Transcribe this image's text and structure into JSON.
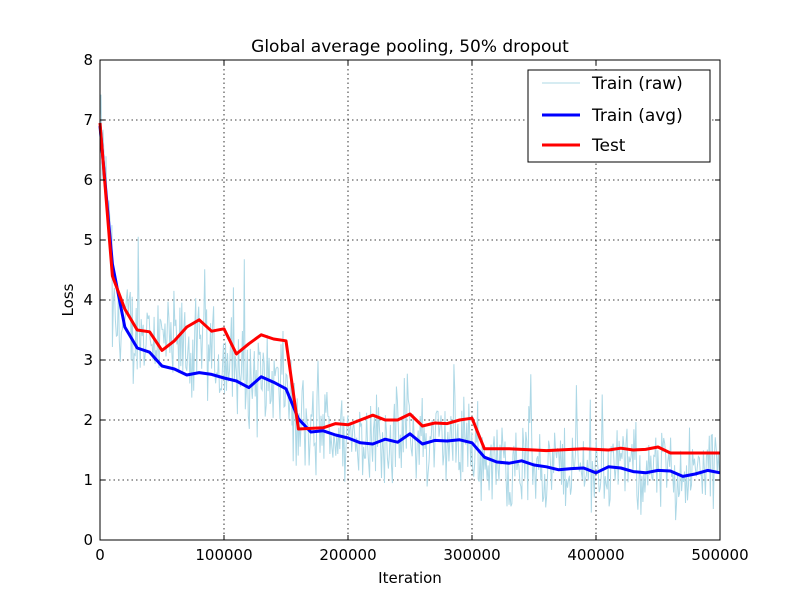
{
  "chart_data": {
    "type": "line",
    "title": "Global average pooling, 50% dropout",
    "xlabel": "Iteration",
    "ylabel": "Loss",
    "xlim": [
      0,
      500000
    ],
    "ylim": [
      0,
      8
    ],
    "xticks": [
      0,
      100000,
      200000,
      300000,
      400000,
      500000
    ],
    "xtick_labels": [
      "0",
      "100000",
      "200000",
      "300000",
      "400000",
      "500000"
    ],
    "yticks": [
      0,
      1,
      2,
      3,
      4,
      5,
      6,
      7,
      8
    ],
    "ytick_labels": [
      "0",
      "1",
      "2",
      "3",
      "4",
      "5",
      "6",
      "7",
      "8"
    ],
    "grid": true,
    "legend_position": "top-right",
    "series": [
      {
        "name": "Train (raw)",
        "color": "#add8e6",
        "style": "thin-noisy",
        "segments": [
          {
            "x_start": 0,
            "x_end": 10000,
            "mean_start": 6.9,
            "mean_end": 4.6,
            "spread": 0.9
          },
          {
            "x_start": 10000,
            "x_end": 155000,
            "mean_start": 3.6,
            "mean_end": 2.5,
            "spread": 1.1
          },
          {
            "x_start": 155000,
            "x_end": 305000,
            "mean_start": 1.8,
            "mean_end": 1.6,
            "spread": 0.95
          },
          {
            "x_start": 305000,
            "x_end": 500000,
            "mean_start": 1.3,
            "mean_end": 1.1,
            "spread": 0.9
          }
        ]
      },
      {
        "name": "Train (avg)",
        "color": "#0000ff",
        "x": [
          0,
          10000,
          20000,
          30000,
          40000,
          50000,
          60000,
          70000,
          80000,
          90000,
          100000,
          110000,
          120000,
          130000,
          140000,
          150000,
          160000,
          170000,
          180000,
          190000,
          200000,
          210000,
          220000,
          230000,
          240000,
          250000,
          260000,
          270000,
          280000,
          290000,
          300000,
          310000,
          320000,
          330000,
          340000,
          350000,
          360000,
          370000,
          380000,
          390000,
          400000,
          410000,
          420000,
          430000,
          440000,
          450000,
          460000,
          470000,
          480000,
          490000,
          500000
        ],
        "y": [
          6.9,
          4.6,
          3.55,
          3.2,
          3.13,
          2.9,
          2.85,
          2.75,
          2.79,
          2.76,
          2.7,
          2.65,
          2.54,
          2.72,
          2.63,
          2.52,
          2.02,
          1.8,
          1.82,
          1.75,
          1.7,
          1.62,
          1.6,
          1.68,
          1.63,
          1.77,
          1.6,
          1.66,
          1.65,
          1.67,
          1.62,
          1.38,
          1.3,
          1.28,
          1.32,
          1.25,
          1.22,
          1.17,
          1.19,
          1.2,
          1.12,
          1.22,
          1.2,
          1.14,
          1.12,
          1.16,
          1.15,
          1.06,
          1.1,
          1.16,
          1.12
        ]
      },
      {
        "name": "Test",
        "color": "#ff0000",
        "x": [
          0,
          10000,
          20000,
          30000,
          40000,
          50000,
          60000,
          70000,
          80000,
          90000,
          100000,
          110000,
          120000,
          130000,
          140000,
          150000,
          160000,
          170000,
          180000,
          190000,
          200000,
          210000,
          220000,
          230000,
          240000,
          250000,
          260000,
          270000,
          280000,
          290000,
          300000,
          310000,
          320000,
          330000,
          340000,
          350000,
          360000,
          370000,
          380000,
          390000,
          400000,
          410000,
          420000,
          430000,
          440000,
          450000,
          460000,
          470000,
          480000,
          490000,
          500000
        ],
        "y": [
          6.95,
          4.4,
          3.85,
          3.5,
          3.47,
          3.16,
          3.32,
          3.55,
          3.67,
          3.48,
          3.52,
          3.1,
          3.27,
          3.42,
          3.35,
          3.32,
          1.85,
          1.86,
          1.87,
          1.94,
          1.92,
          2.0,
          2.08,
          2.0,
          2.0,
          2.1,
          1.9,
          1.95,
          1.94,
          2.0,
          2.03,
          1.52,
          1.52,
          1.52,
          1.51,
          1.5,
          1.49,
          1.5,
          1.51,
          1.52,
          1.51,
          1.5,
          1.53,
          1.5,
          1.51,
          1.55,
          1.45,
          1.45,
          1.45,
          1.45,
          1.45
        ]
      }
    ]
  }
}
